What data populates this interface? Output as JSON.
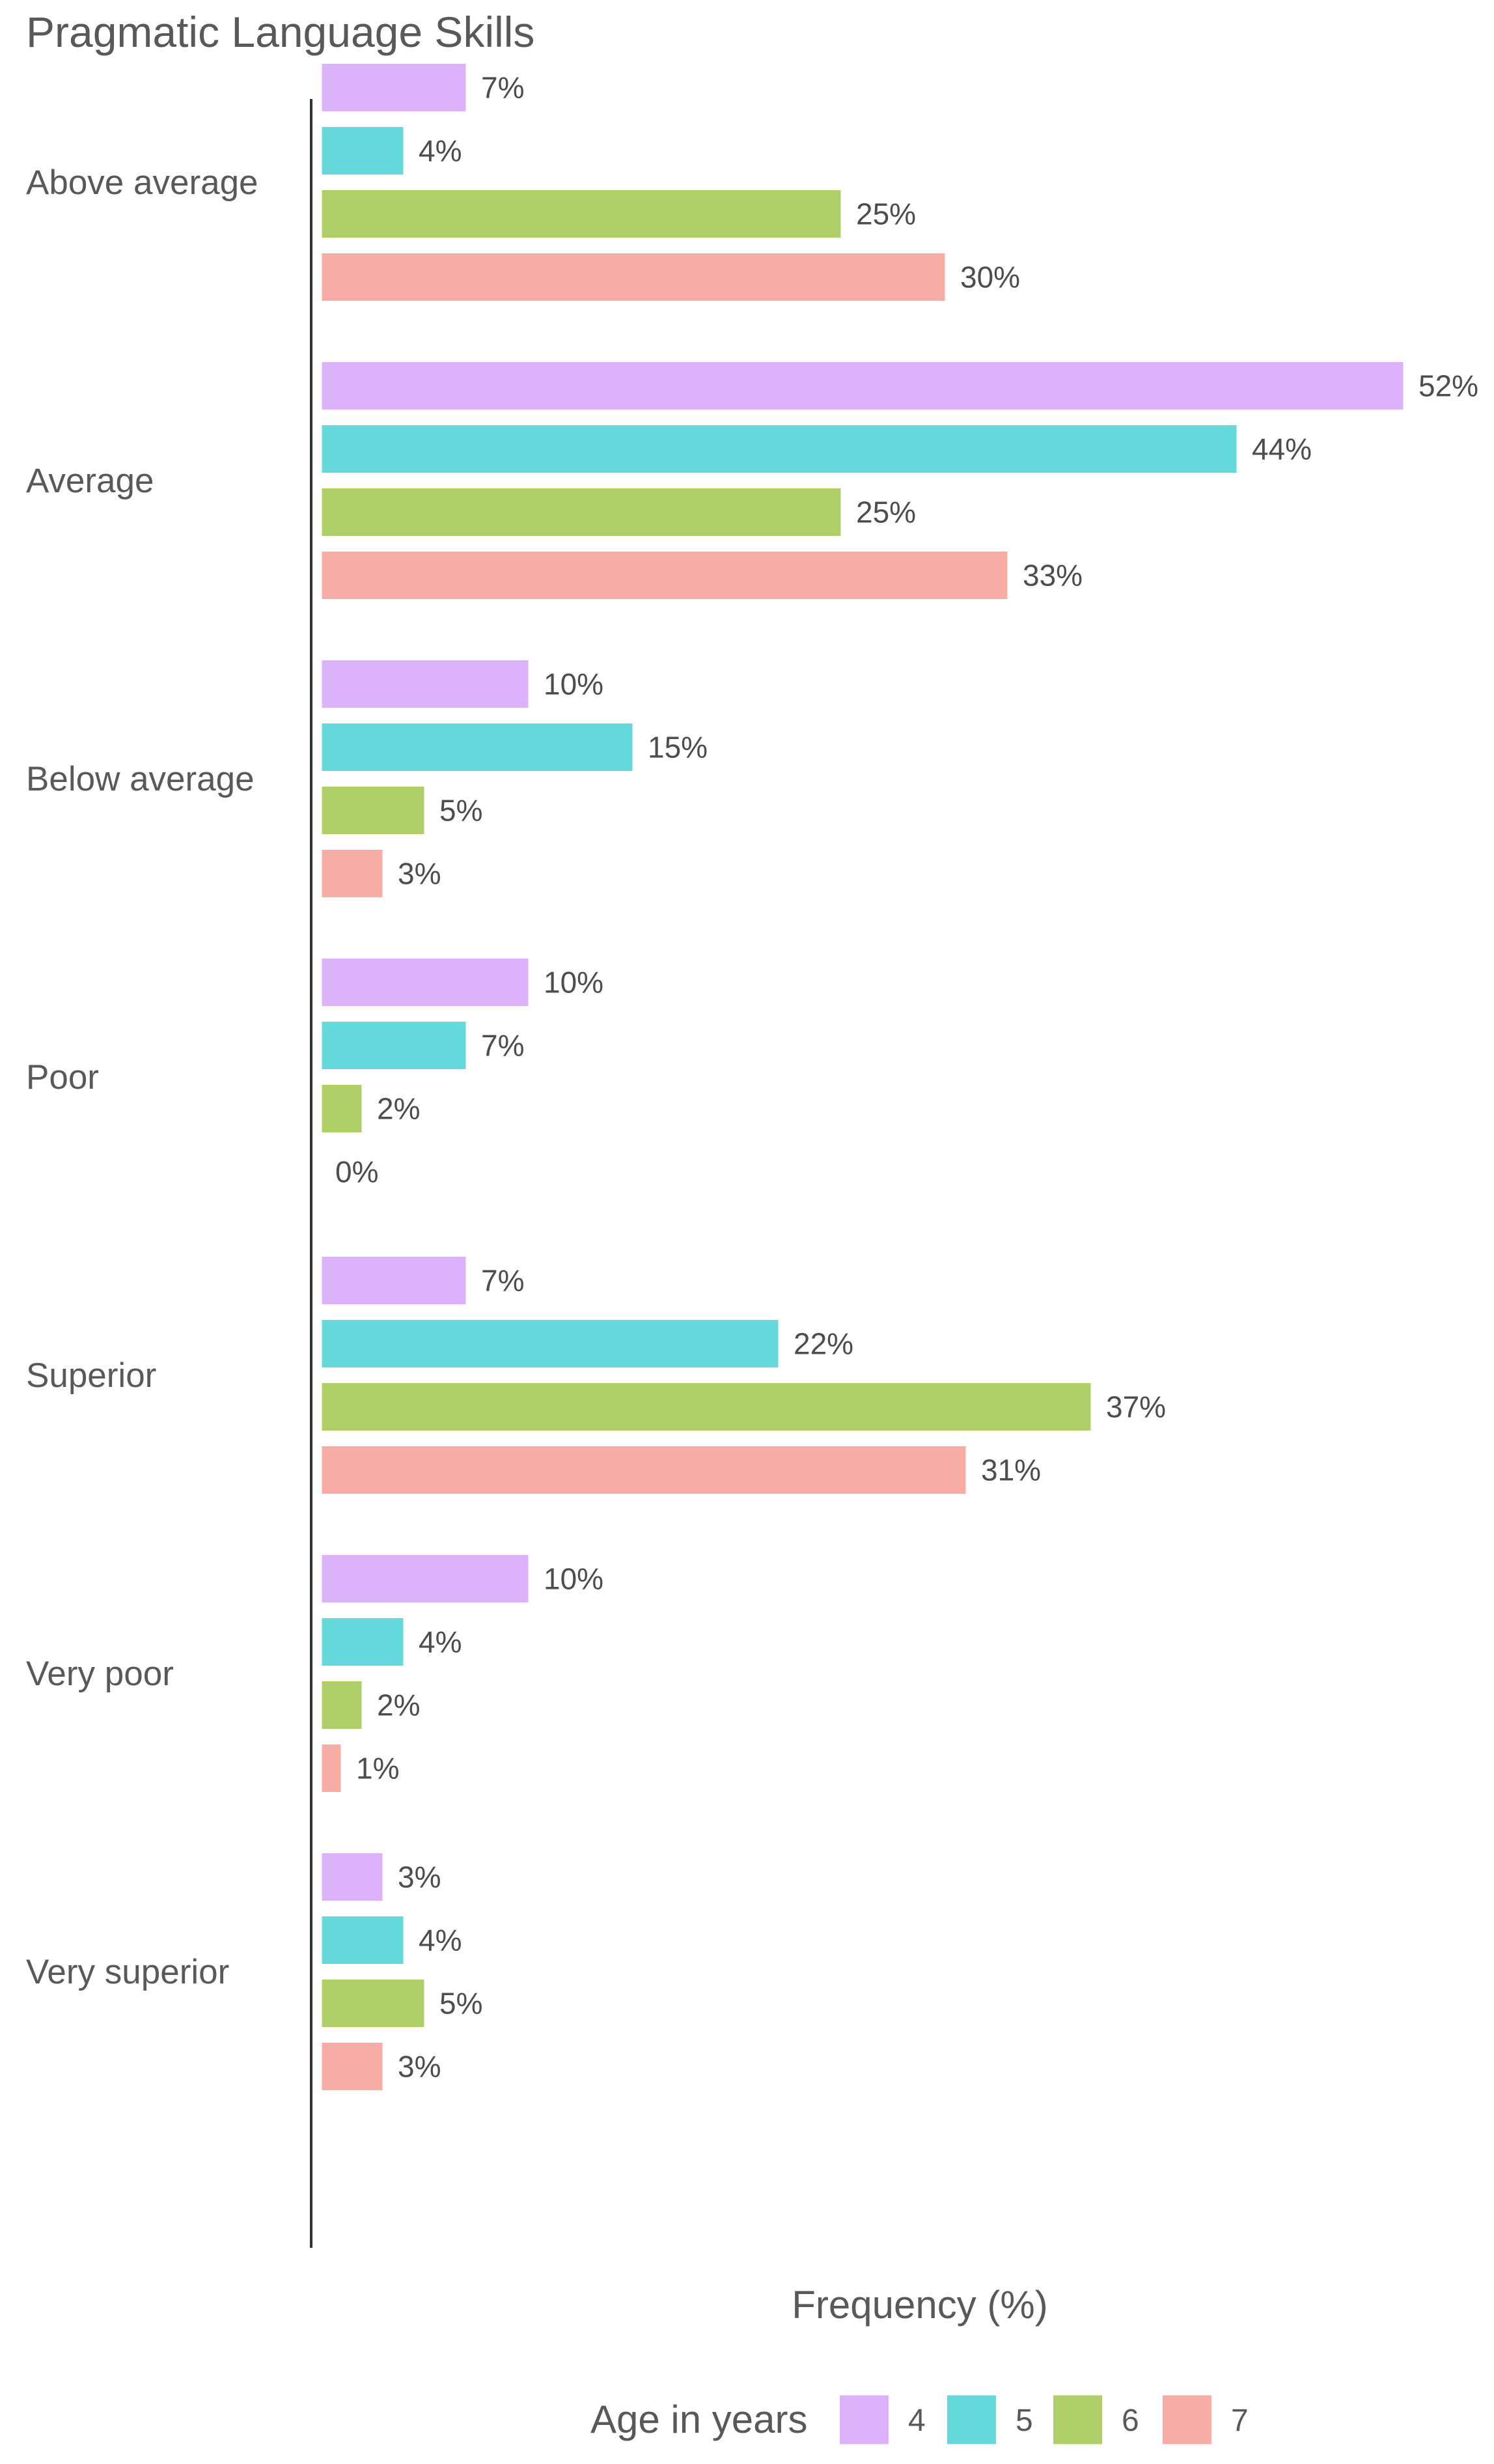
{
  "chart_data": {
    "type": "bar",
    "orientation": "horizontal",
    "title": "Pragmatic Language Skills",
    "xlabel": "Frequency (%)",
    "ylabel": "",
    "xlim": [
      0,
      55
    ],
    "grid": false,
    "categories": [
      "Above average",
      "Average",
      "Below average",
      "Poor",
      "Superior",
      "Very poor",
      "Very superior"
    ],
    "series": [
      {
        "name": "4",
        "color": "#dcb3fb",
        "values": [
          7,
          52,
          10,
          10,
          7,
          10,
          3
        ]
      },
      {
        "name": "5",
        "color": "#66d9dc",
        "values": [
          4,
          44,
          15,
          7,
          22,
          4,
          4
        ]
      },
      {
        "name": "6",
        "color": "#afcf68",
        "values": [
          25,
          25,
          5,
          2,
          37,
          2,
          5
        ]
      },
      {
        "name": "7",
        "color": "#f8aca6",
        "values": [
          30,
          33,
          3,
          0,
          31,
          1,
          3
        ]
      }
    ],
    "value_suffix": "%",
    "legend": {
      "title": "Age in years",
      "position": "bottom"
    }
  }
}
